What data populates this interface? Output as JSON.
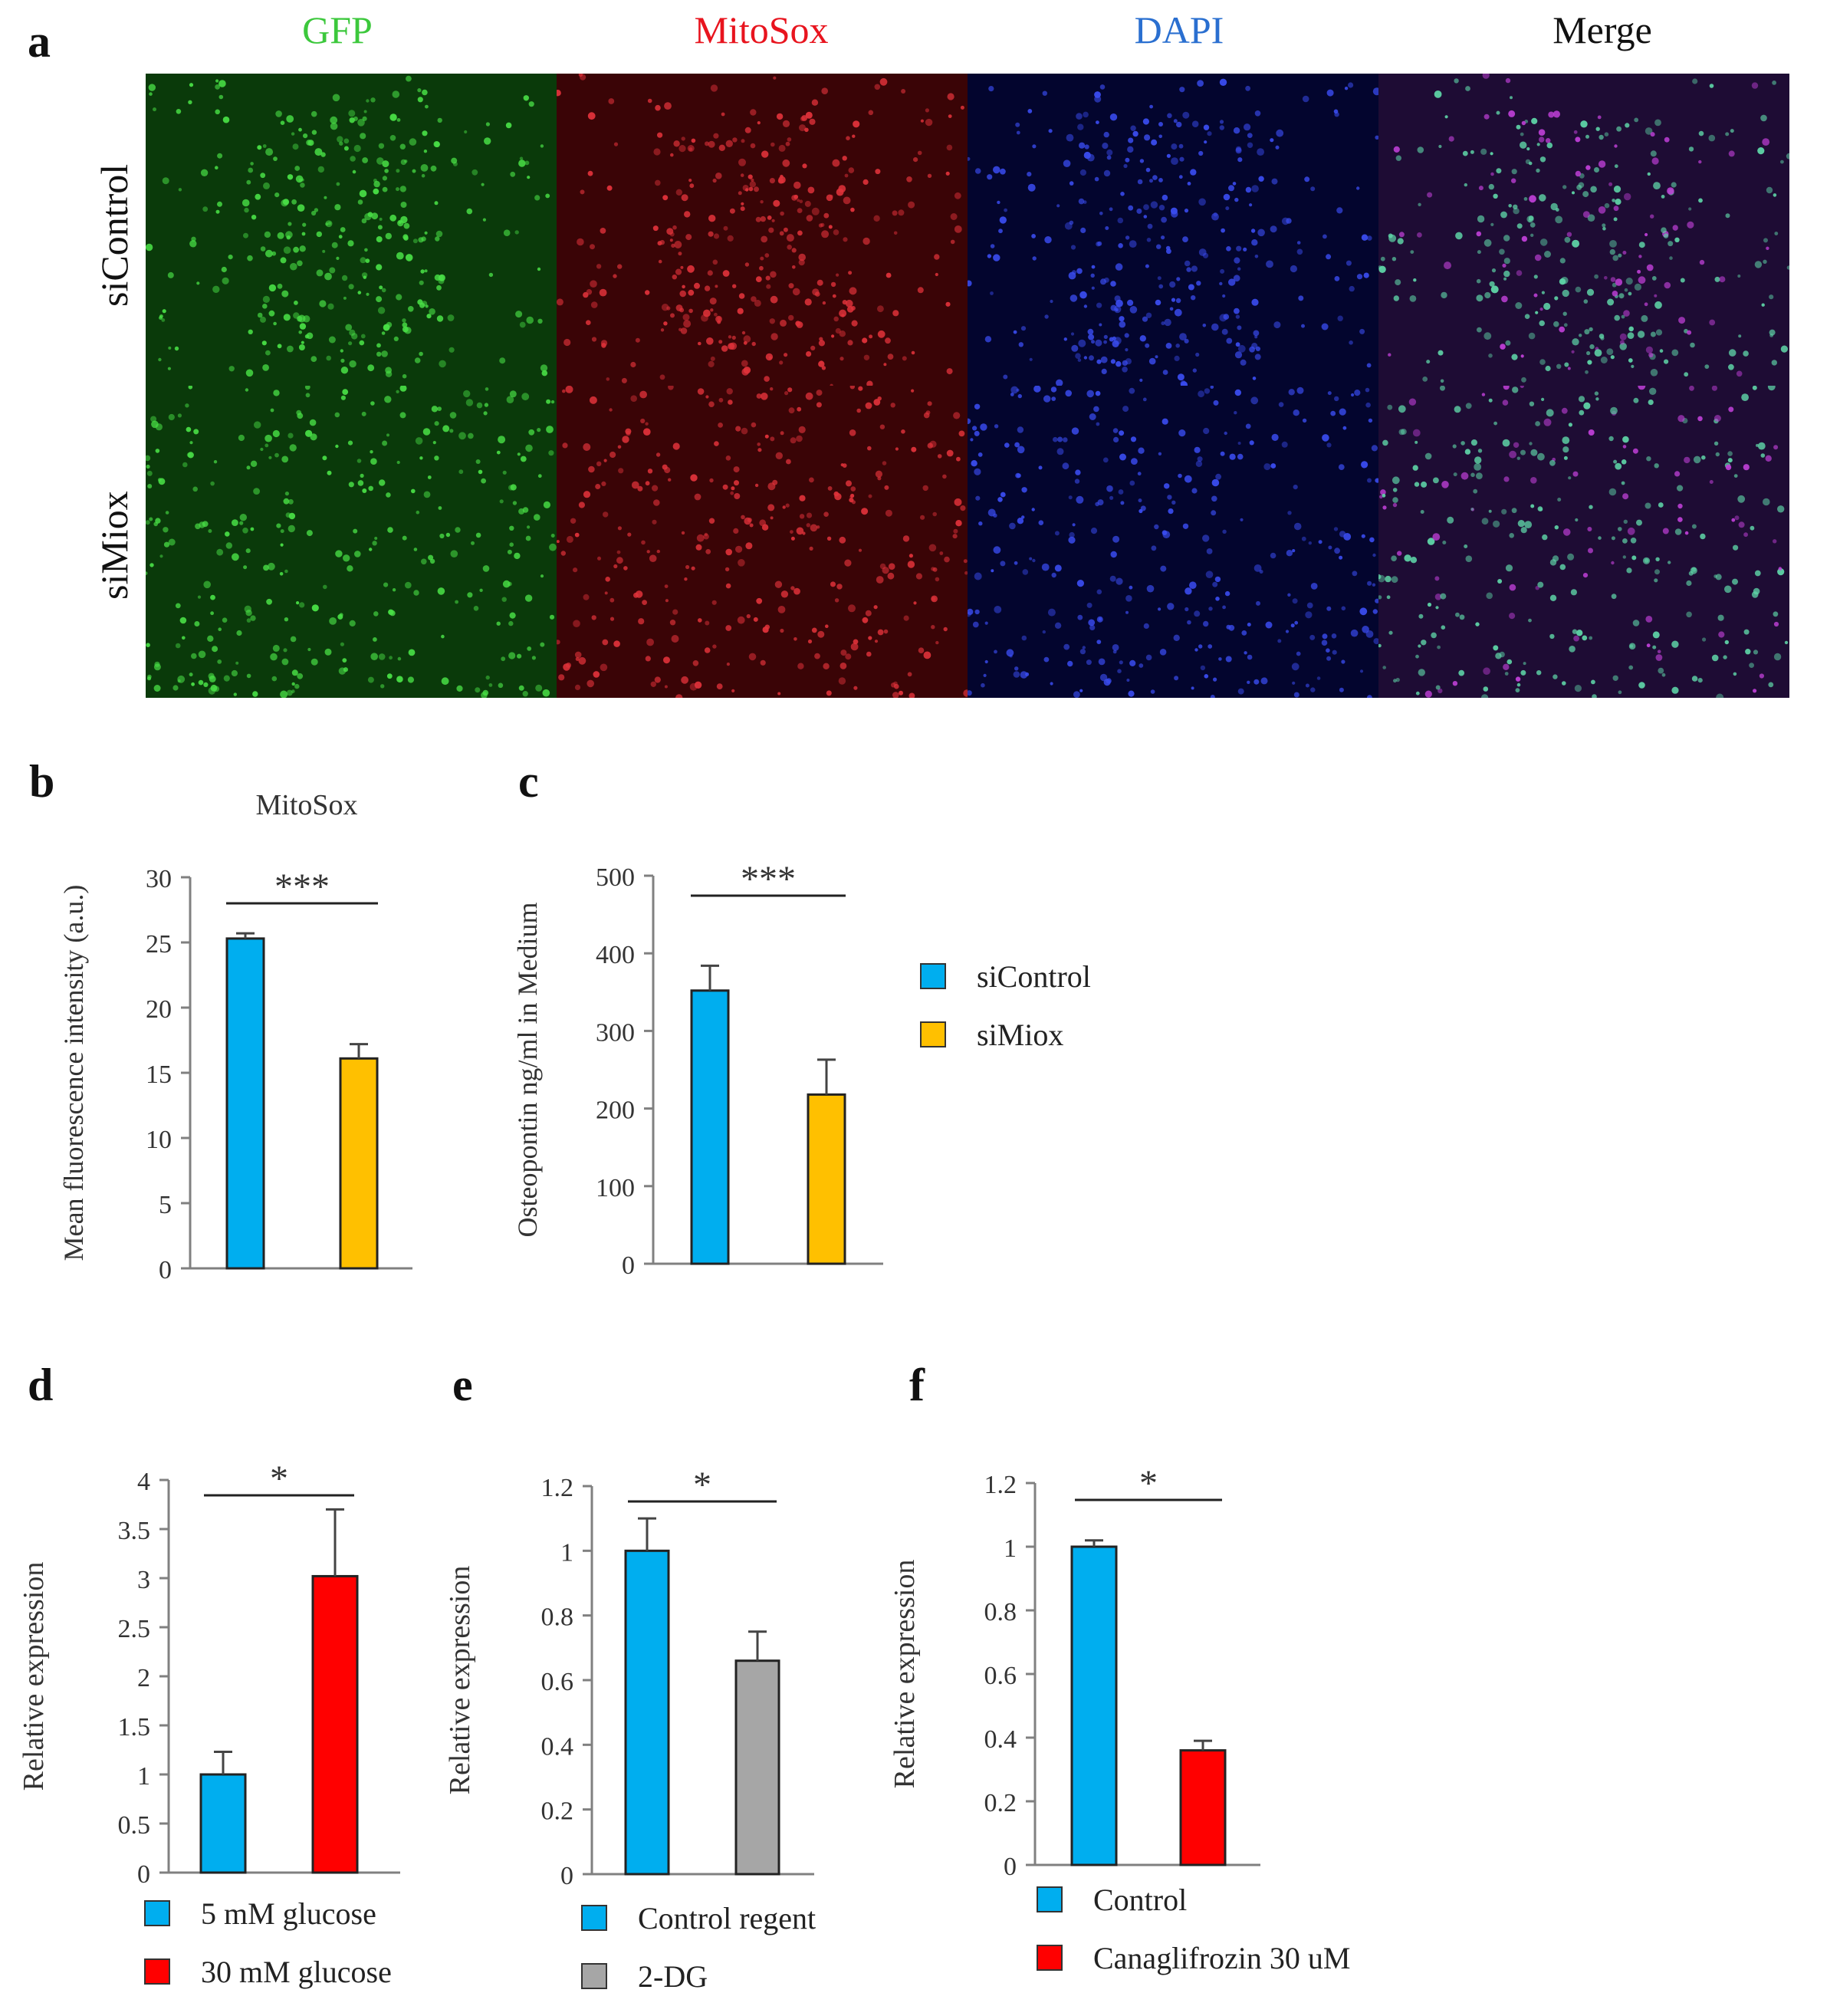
{
  "panel_a": {
    "letter": "a",
    "channels": [
      {
        "label": "GFP",
        "color": "#3cc83c",
        "base": "#0a3a0a",
        "dot": "#49e046"
      },
      {
        "label": "MitoSox",
        "color": "#e8141e",
        "base": "#3a0406",
        "dot": "#e0323a"
      },
      {
        "label": "DAPI",
        "color": "#2a6fd0",
        "base": "#03052e",
        "dot": "#3a4cf0"
      },
      {
        "label": "Merge",
        "color": "#111111",
        "base": "#1e0c34",
        "dot": "#5fd6a8"
      }
    ],
    "rows": [
      "siControl",
      "siMiox"
    ]
  },
  "chart_data": [
    {
      "id": "b",
      "letter": "b",
      "type": "bar",
      "title": "MitoSox",
      "ylabel": "Mean fluorescence intensity (a.u.)",
      "ylim": [
        0,
        30
      ],
      "yticks": [
        "0",
        "5",
        "10",
        "15",
        "20",
        "25",
        "30"
      ],
      "tick_values": [
        0,
        5,
        10,
        15,
        20,
        25,
        30
      ],
      "series": [
        {
          "name": "siControl",
          "value": 25.3,
          "error": 0.4,
          "color": "#00aeef"
        },
        {
          "name": "siMiox",
          "value": 16.1,
          "error": 1.1,
          "color": "#ffc000"
        }
      ],
      "significance": "***"
    },
    {
      "id": "c",
      "letter": "c",
      "type": "bar",
      "title": "",
      "ylabel": "Osteopontin ng/ml in Medium",
      "ylim": [
        0,
        500
      ],
      "yticks": [
        "0",
        "100",
        "200",
        "300",
        "400",
        "500"
      ],
      "tick_values": [
        0,
        100,
        200,
        300,
        400,
        500
      ],
      "series": [
        {
          "name": "siControl",
          "value": 352,
          "error": 32,
          "color": "#00aeef"
        },
        {
          "name": "siMiox",
          "value": 218,
          "error": 45,
          "color": "#ffc000"
        }
      ],
      "significance": "***",
      "legend": [
        "siControl",
        "siMiox"
      ]
    },
    {
      "id": "d",
      "letter": "d",
      "type": "bar",
      "title": "",
      "ylabel": "Relative expression",
      "ylim": [
        0,
        4
      ],
      "yticks": [
        "0",
        "0.5",
        "1",
        "1.5",
        "2",
        "2.5",
        "3",
        "3.5",
        "4"
      ],
      "tick_values": [
        0,
        0.5,
        1,
        1.5,
        2,
        2.5,
        3,
        3.5,
        4
      ],
      "series": [
        {
          "name": "5 mM glucose",
          "value": 1.0,
          "error": 0.23,
          "color": "#00aeef"
        },
        {
          "name": "30 mM glucose",
          "value": 3.02,
          "error": 0.68,
          "color": "#ff0000"
        }
      ],
      "significance": "*",
      "legend": [
        "5 mM glucose",
        "30 mM glucose"
      ]
    },
    {
      "id": "e",
      "letter": "e",
      "type": "bar",
      "title": "",
      "ylabel": "Relative expression",
      "ylim": [
        0,
        1.2
      ],
      "yticks": [
        "0",
        "0.2",
        "0.4",
        "0.6",
        "0.8",
        "1",
        "1.2"
      ],
      "tick_values": [
        0,
        0.2,
        0.4,
        0.6,
        0.8,
        1.0,
        1.2
      ],
      "series": [
        {
          "name": "Control regent",
          "value": 1.0,
          "error": 0.1,
          "color": "#00aeef"
        },
        {
          "name": "2-DG",
          "value": 0.66,
          "error": 0.09,
          "color": "#a6a6a6"
        }
      ],
      "significance": "*",
      "legend": [
        "Control regent",
        "2-DG"
      ]
    },
    {
      "id": "f",
      "letter": "f",
      "type": "bar",
      "title": "",
      "ylabel": "Relative expression",
      "ylim": [
        0,
        1.2
      ],
      "yticks": [
        "0",
        "0.2",
        "0.4",
        "0.6",
        "0.8",
        "1",
        "1.2"
      ],
      "tick_values": [
        0,
        0.2,
        0.4,
        0.6,
        0.8,
        1.0,
        1.2
      ],
      "series": [
        {
          "name": "Control",
          "value": 1.0,
          "error": 0.02,
          "color": "#00aeef"
        },
        {
          "name": "Canaglifrozin  30 uM",
          "value": 0.36,
          "error": 0.03,
          "color": "#ff0000"
        }
      ],
      "significance": "*",
      "legend": [
        "Control",
        "Canaglifrozin  30 uM"
      ]
    }
  ]
}
